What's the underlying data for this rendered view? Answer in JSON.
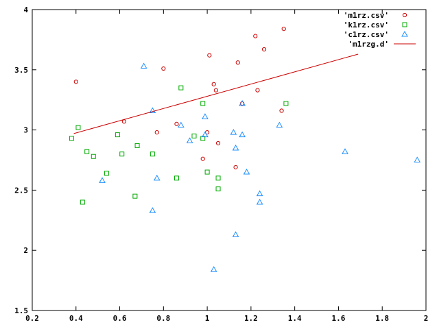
{
  "chart_data": {
    "type": "scatter",
    "title": "",
    "xlabel": "",
    "ylabel": "",
    "xlim": [
      0.2,
      2.0
    ],
    "ylim": [
      1.5,
      4.0
    ],
    "xticks": [
      "0.2",
      "0.4",
      "0.6",
      "0.8",
      "1",
      "1.2",
      "1.4",
      "1.6",
      "1.8",
      "2"
    ],
    "yticks": [
      "1.5",
      "2",
      "2.5",
      "3",
      "3.5",
      "4"
    ],
    "grid": false,
    "legend_position": "top-right",
    "series": [
      {
        "name": "'m1rz.csv'",
        "marker": "circle",
        "color": "#cc0000",
        "points": [
          [
            0.4,
            3.4
          ],
          [
            0.62,
            3.07
          ],
          [
            0.77,
            2.98
          ],
          [
            0.8,
            3.51
          ],
          [
            0.86,
            3.05
          ],
          [
            0.98,
            2.76
          ],
          [
            1.0,
            2.98
          ],
          [
            1.01,
            3.62
          ],
          [
            1.03,
            3.38
          ],
          [
            1.04,
            3.33
          ],
          [
            1.05,
            2.89
          ],
          [
            1.13,
            2.69
          ],
          [
            1.14,
            3.56
          ],
          [
            1.16,
            3.22
          ],
          [
            1.22,
            3.78
          ],
          [
            1.23,
            3.33
          ],
          [
            1.26,
            3.67
          ],
          [
            1.34,
            3.16
          ],
          [
            1.35,
            3.84
          ]
        ]
      },
      {
        "name": "'k1rz.csv'",
        "marker": "square",
        "color": "#00aa00",
        "points": [
          [
            0.38,
            2.93
          ],
          [
            0.41,
            3.02
          ],
          [
            0.43,
            2.4
          ],
          [
            0.45,
            2.82
          ],
          [
            0.48,
            2.78
          ],
          [
            0.54,
            2.64
          ],
          [
            0.59,
            2.96
          ],
          [
            0.61,
            2.8
          ],
          [
            0.67,
            2.45
          ],
          [
            0.68,
            2.87
          ],
          [
            0.75,
            2.8
          ],
          [
            0.86,
            2.6
          ],
          [
            0.88,
            3.35
          ],
          [
            0.94,
            2.95
          ],
          [
            0.98,
            2.93
          ],
          [
            0.98,
            3.22
          ],
          [
            1.0,
            2.65
          ],
          [
            1.05,
            2.6
          ],
          [
            1.05,
            2.51
          ],
          [
            1.36,
            3.22
          ]
        ]
      },
      {
        "name": "'c1rz.csv'",
        "marker": "triangle",
        "color": "#1e90ff",
        "points": [
          [
            0.52,
            2.58
          ],
          [
            0.71,
            3.53
          ],
          [
            0.75,
            3.16
          ],
          [
            0.75,
            2.33
          ],
          [
            0.77,
            2.6
          ],
          [
            0.88,
            3.04
          ],
          [
            0.92,
            2.91
          ],
          [
            0.99,
            3.11
          ],
          [
            0.99,
            2.96
          ],
          [
            1.03,
            1.84
          ],
          [
            1.12,
            2.98
          ],
          [
            1.13,
            2.13
          ],
          [
            1.13,
            2.85
          ],
          [
            1.16,
            3.22
          ],
          [
            1.16,
            2.96
          ],
          [
            1.18,
            2.65
          ],
          [
            1.24,
            2.47
          ],
          [
            1.24,
            2.4
          ],
          [
            1.33,
            3.04
          ],
          [
            1.63,
            2.82
          ],
          [
            1.96,
            2.75
          ]
        ]
      },
      {
        "name": "'m1rzg.d'",
        "marker": "line",
        "color": "#cc0000",
        "points": [
          [
            0.39,
            2.97
          ],
          [
            1.69,
            3.63
          ]
        ]
      }
    ]
  }
}
